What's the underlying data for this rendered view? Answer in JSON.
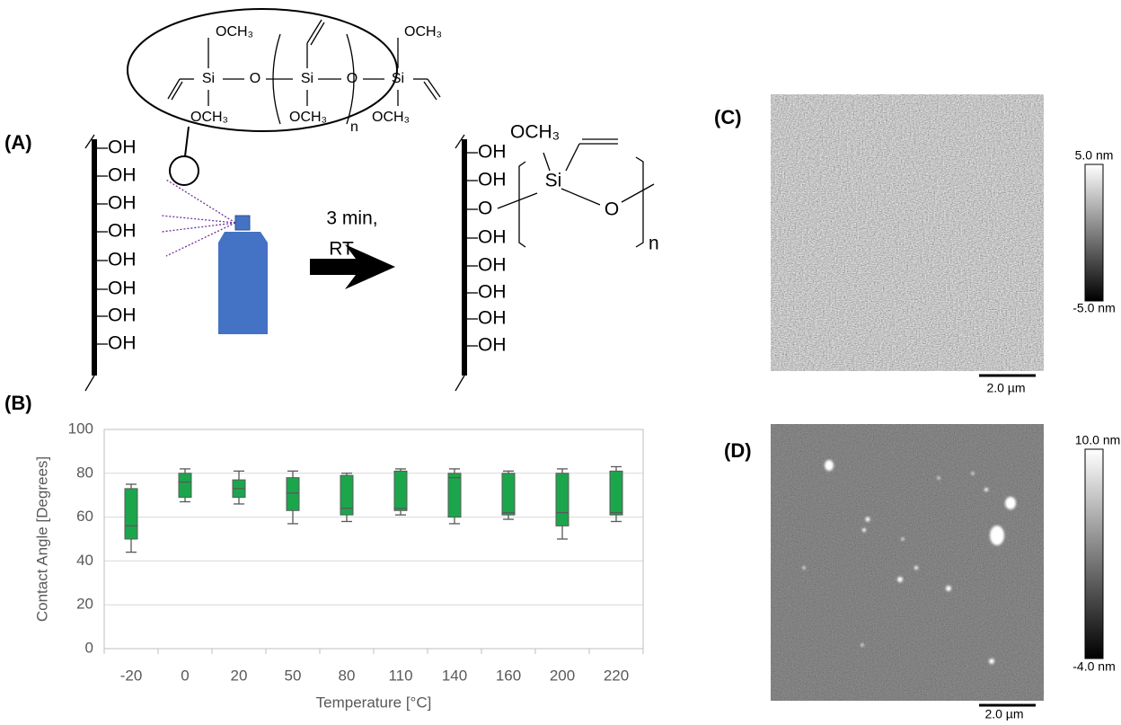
{
  "panel_labels": [
    "(A)",
    "(B)",
    "(C)",
    "(D)"
  ],
  "scheme": {
    "precursor": {
      "top_left": "OCH₃",
      "top_right": "OCH₃",
      "bottom_left": "OCH₃",
      "bottom_middle": "OCH₃",
      "bottom_right": "OCH₃",
      "si": [
        "Si",
        "Si",
        "Si"
      ],
      "o": [
        "O",
        "O"
      ],
      "n": "n"
    },
    "surface_groups": [
      "OH",
      "OH",
      "OH",
      "OH",
      "OH",
      "OH",
      "OH",
      "OH"
    ],
    "conditions": [
      "3 min,",
      "RT"
    ],
    "product": {
      "surface_groups": [
        "OH",
        "OH",
        "O",
        "OH",
        "OH",
        "OH",
        "OH",
        "OH"
      ],
      "och3": "OCH₃",
      "si": "Si",
      "o": "O",
      "n": "n"
    }
  },
  "afm": [
    {
      "max": "5.0 nm",
      "min": "-5.0 nm",
      "scale_bar": "2.0 µm"
    },
    {
      "max": "10.0 nm",
      "min": "-4.0 nm",
      "scale_bar": "2.0 µm"
    }
  ],
  "chart_data": {
    "type": "box",
    "xlabel": "Temperature [°C]",
    "ylabel": "Contact Angle [Degrees]",
    "categories": [
      "-20",
      "0",
      "20",
      "50",
      "80",
      "110",
      "140",
      "160",
      "200",
      "220"
    ],
    "min": [
      44,
      67,
      66,
      57,
      58,
      61,
      57,
      59,
      50,
      58
    ],
    "q1": [
      50,
      69,
      69,
      63,
      61,
      63,
      60,
      61,
      56,
      61
    ],
    "median": [
      56,
      76,
      73,
      71,
      64,
      64,
      78,
      62,
      62,
      62
    ],
    "q3": [
      73,
      80,
      77,
      78,
      79,
      81,
      80,
      80,
      80,
      81
    ],
    "max": [
      75,
      82,
      81,
      81,
      80,
      82,
      82,
      81,
      82,
      83
    ],
    "color": "#1ca64c",
    "whisker_color": "#595959",
    "ylim": [
      0,
      100
    ],
    "yticks": [
      0,
      20,
      40,
      60,
      80,
      100
    ],
    "grid": true
  }
}
